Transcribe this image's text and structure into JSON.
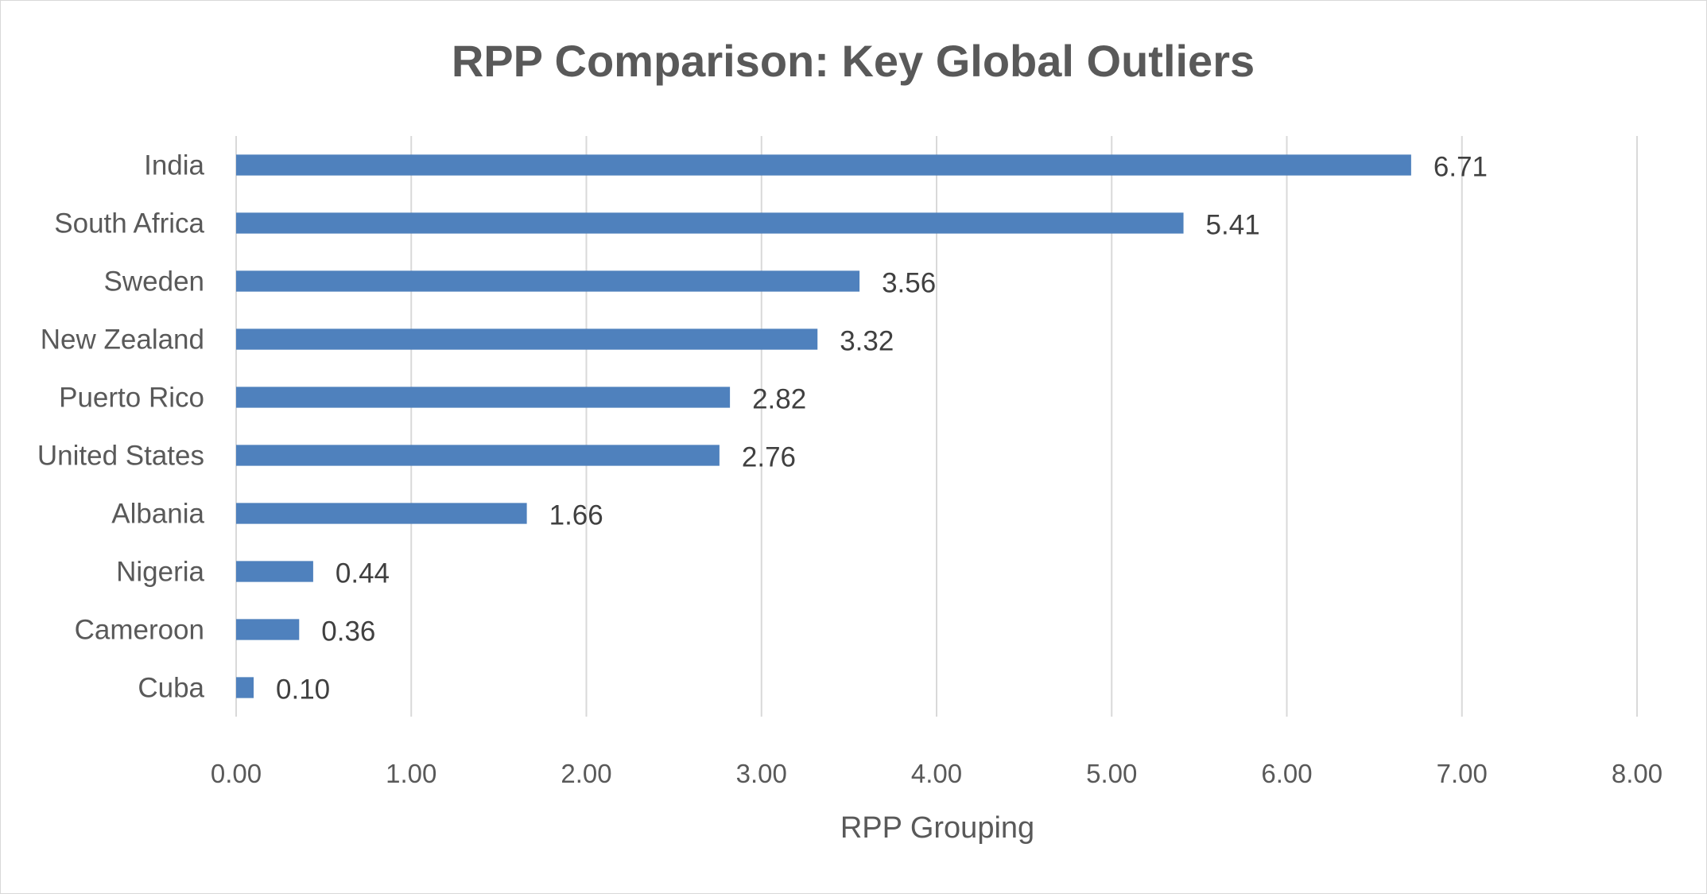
{
  "chart_data": {
    "type": "bar",
    "orientation": "horizontal",
    "title": "RPP Comparison: Key Global Outliers",
    "xlabel": "RPP Grouping",
    "ylabel": "",
    "xlim": [
      0,
      8
    ],
    "x_ticks": [
      "0.00",
      "1.00",
      "2.00",
      "3.00",
      "4.00",
      "5.00",
      "6.00",
      "7.00",
      "8.00"
    ],
    "grid": "vertical",
    "legend": "none",
    "bar_color": "#4f81bd",
    "categories": [
      "India",
      "South Africa",
      "Sweden",
      "New Zealand",
      "Puerto Rico",
      "United States",
      "Albania",
      "Nigeria",
      "Cameroon",
      "Cuba"
    ],
    "values": [
      6.71,
      5.41,
      3.56,
      3.32,
      2.82,
      2.76,
      1.66,
      0.44,
      0.36,
      0.1
    ],
    "data_labels": [
      "6.71",
      "5.41",
      "3.56",
      "3.32",
      "2.82",
      "2.76",
      "1.66",
      "0.44",
      "0.36",
      "0.10"
    ]
  }
}
